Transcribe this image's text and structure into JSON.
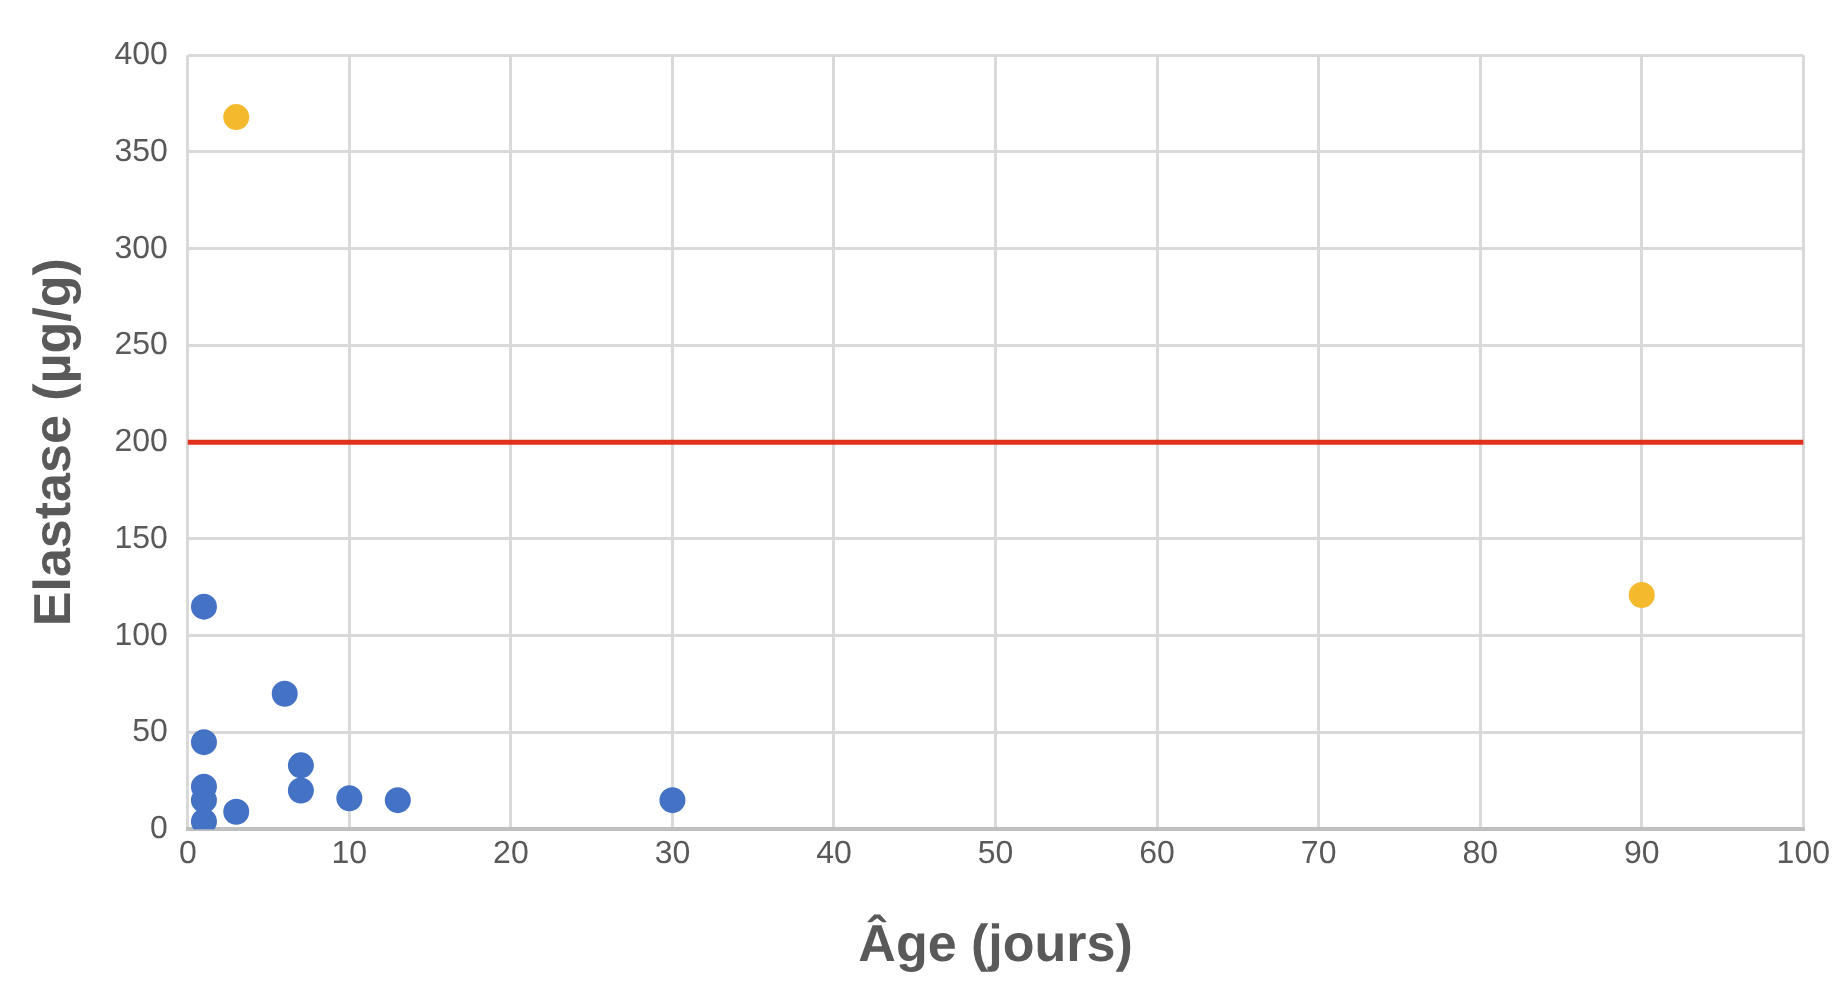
{
  "chart_data": {
    "type": "scatter",
    "xlabel": "Âge (jours)",
    "ylabel": "Elastase (µg/g)",
    "xlim": [
      0,
      100
    ],
    "xticks": [
      0,
      10,
      20,
      30,
      40,
      50,
      60,
      70,
      80,
      90,
      100
    ],
    "ylim": [
      0,
      400
    ],
    "yticks": [
      0,
      50,
      100,
      150,
      200,
      250,
      300,
      350,
      400
    ],
    "grid": true,
    "legend": false,
    "marker": "circle",
    "series": [
      {
        "color": "#4472c4",
        "x": [
          1,
          1,
          1,
          1,
          1,
          3,
          6,
          7,
          7,
          10,
          13,
          30
        ],
        "values": [
          115,
          45,
          22,
          15,
          4,
          9,
          70,
          33,
          20,
          16,
          15,
          15
        ]
      },
      {
        "color": "#f5b92e",
        "x": [
          3,
          90
        ],
        "values": [
          368,
          121
        ]
      }
    ],
    "ref_lines": [
      {
        "axis": "y",
        "value": 200,
        "color": "#e0301e"
      }
    ]
  }
}
